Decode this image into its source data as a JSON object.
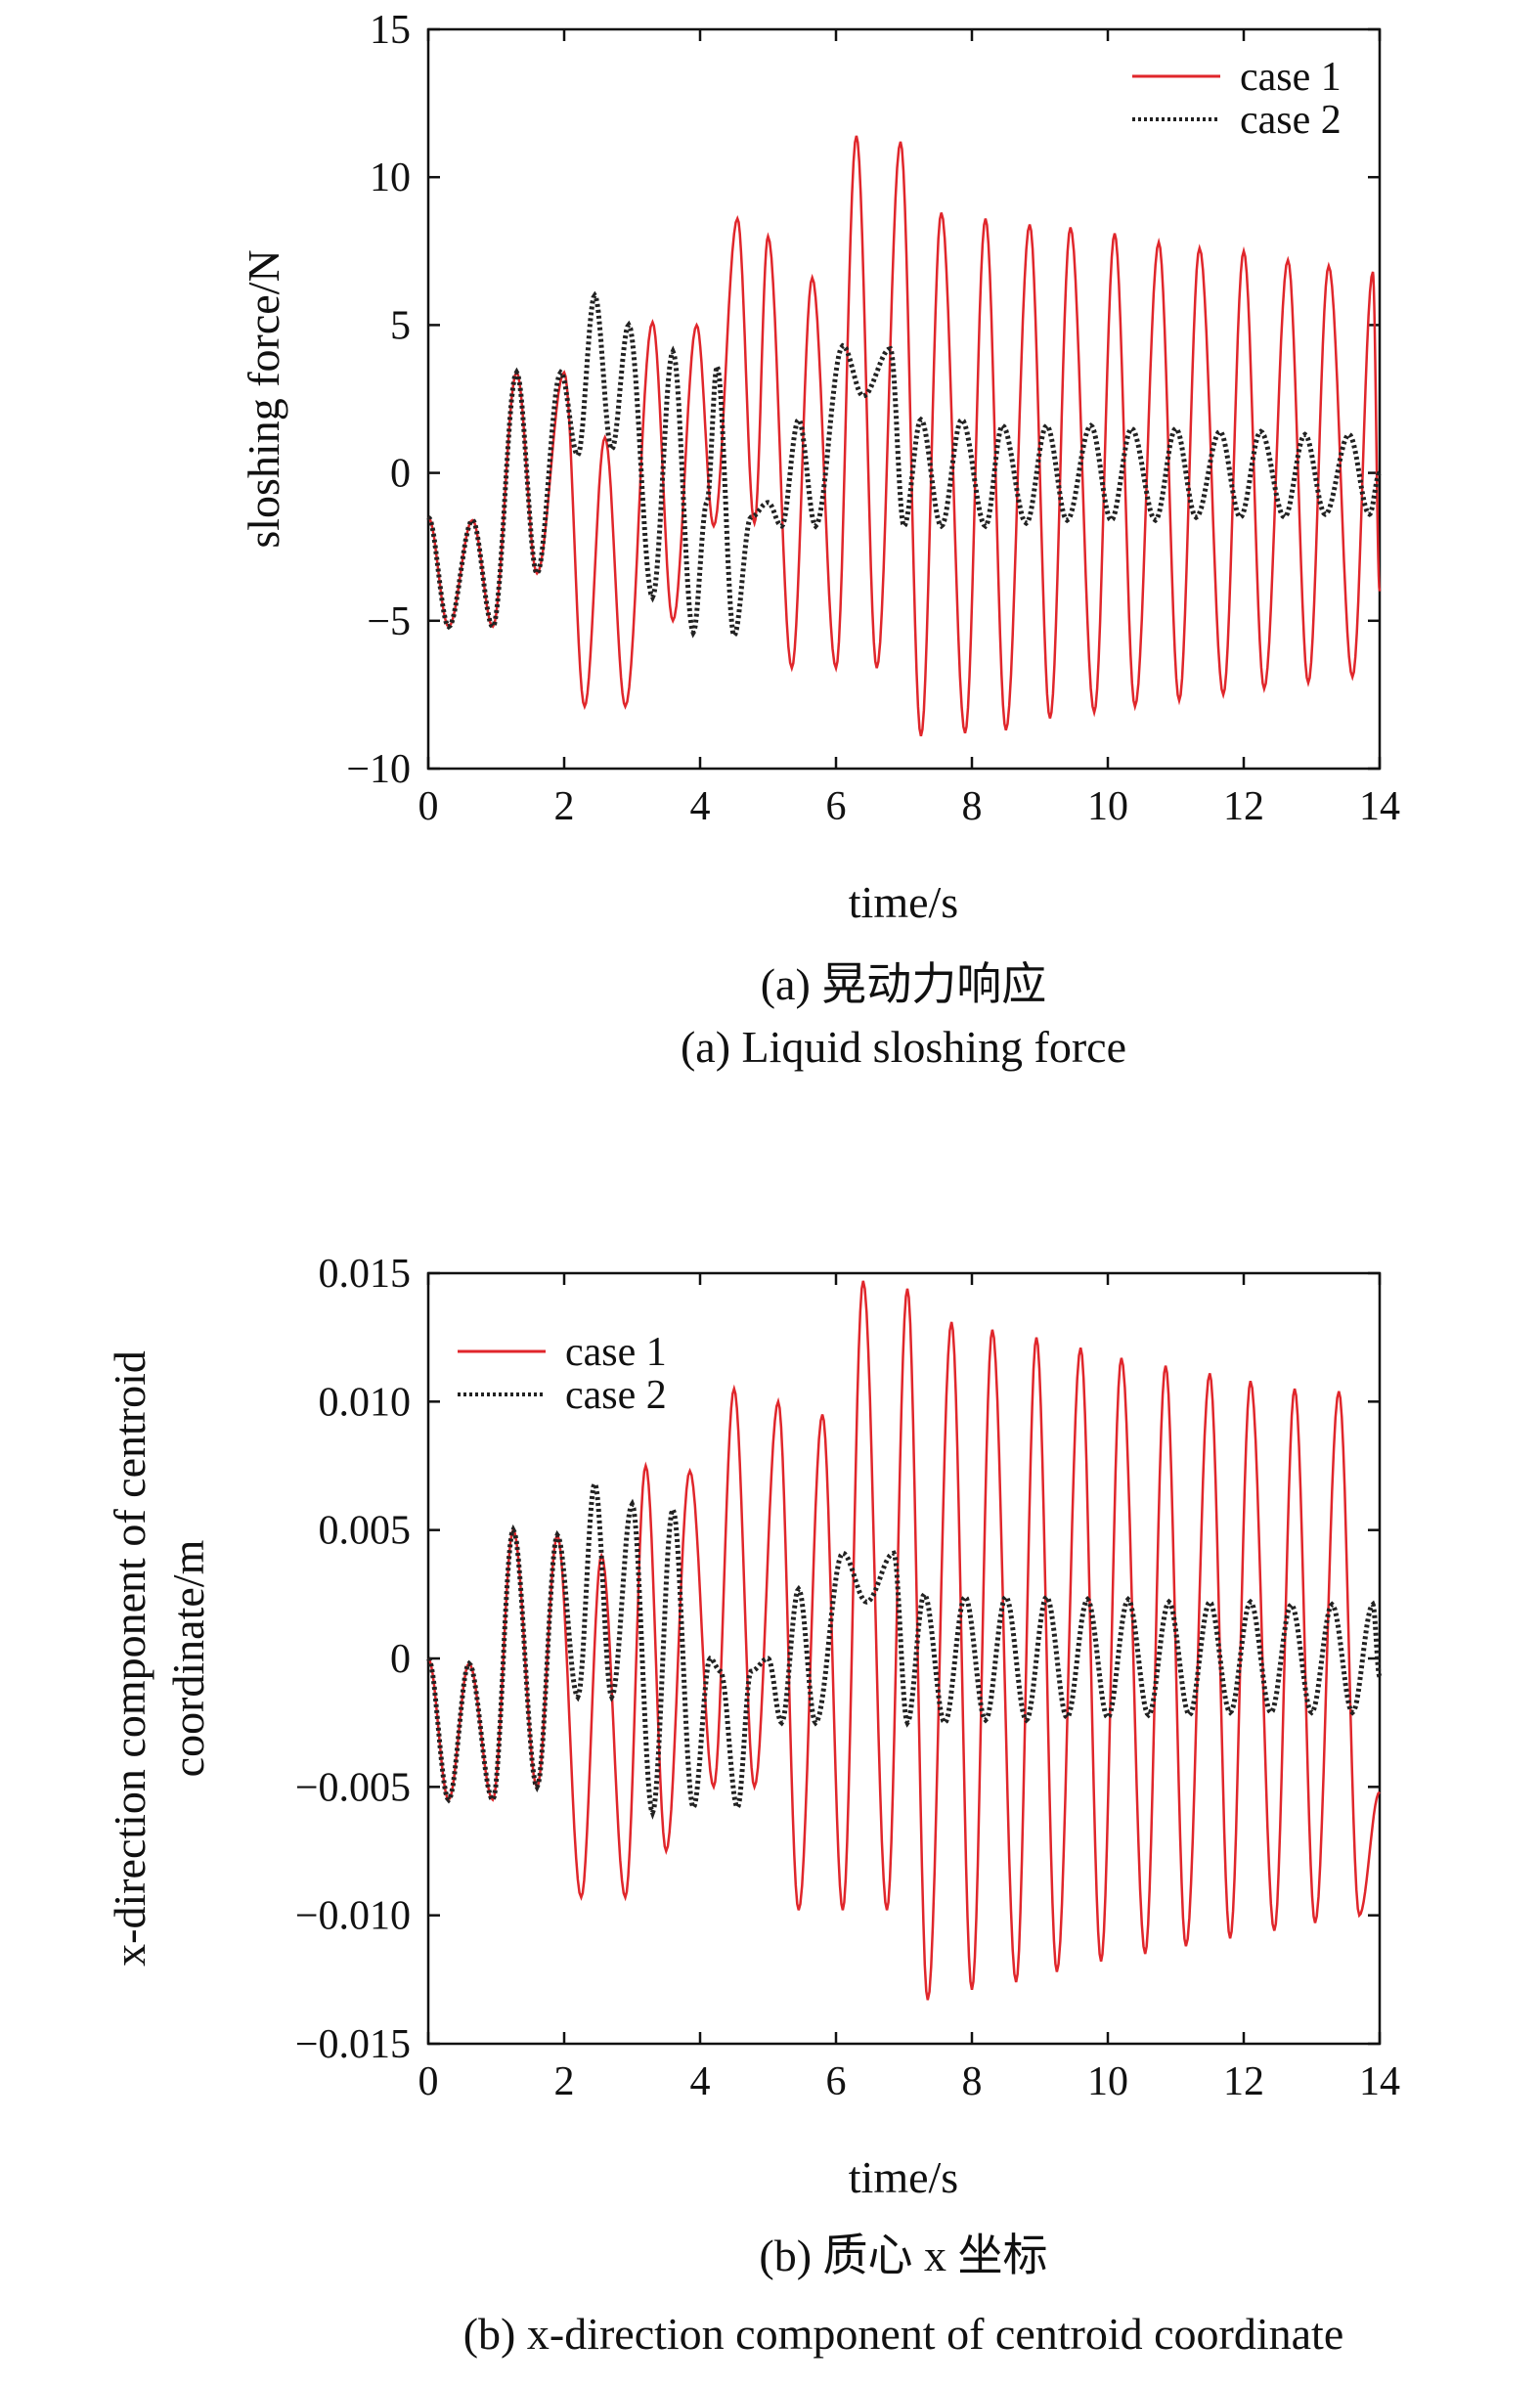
{
  "chart_data": [
    {
      "type": "line",
      "xlabel": "time/s",
      "ylabel": "sloshing force/N",
      "xlim": [
        0,
        14
      ],
      "ylim": [
        -10,
        15
      ],
      "xticks": [
        "0",
        "2",
        "4",
        "6",
        "8",
        "10",
        "12",
        "14"
      ],
      "yticks": [
        "−10",
        "−5",
        "0",
        "5",
        "10",
        "15"
      ],
      "legend_position": "top-right",
      "caption_cn": "(a) 晃动力响应",
      "caption_en": "(a) Liquid sloshing force",
      "colors": {
        "case1": "#e0262b",
        "case2": "#222222"
      },
      "series": [
        {
          "name": "case 1",
          "style": "solid",
          "x": [
            0.0,
            0.3,
            0.65,
            0.95,
            1.3,
            1.6,
            2.0,
            2.3,
            2.6,
            2.9,
            3.3,
            3.6,
            3.95,
            4.2,
            4.55,
            4.8,
            5.0,
            5.35,
            5.65,
            6.0,
            6.3,
            6.6,
            6.95,
            7.25,
            7.55,
            7.9,
            8.2,
            8.5,
            8.85,
            9.15,
            9.45,
            9.8,
            10.1,
            10.4,
            10.75,
            11.05,
            11.35,
            11.7,
            12.0,
            12.3,
            12.65,
            12.95,
            13.25,
            13.6,
            13.9,
            14.0
          ],
          "y": [
            -1.5,
            -5.2,
            -1.6,
            -5.2,
            3.4,
            -3.4,
            3.4,
            -7.9,
            1.2,
            -7.9,
            5.1,
            -5.0,
            5.0,
            -1.8,
            8.6,
            -1.7,
            8.0,
            -6.6,
            6.6,
            -6.6,
            11.4,
            -6.6,
            11.2,
            -8.9,
            8.8,
            -8.8,
            8.6,
            -8.7,
            8.4,
            -8.3,
            8.3,
            -8.1,
            8.1,
            -7.9,
            7.8,
            -7.7,
            7.6,
            -7.5,
            7.5,
            -7.3,
            7.2,
            -7.1,
            7.0,
            -6.9,
            6.8,
            -4.0
          ]
        },
        {
          "name": "case 2",
          "style": "dotted",
          "x": [
            0.0,
            0.3,
            0.65,
            0.95,
            1.3,
            1.6,
            1.95,
            2.2,
            2.45,
            2.7,
            2.95,
            3.3,
            3.6,
            3.9,
            4.1,
            4.25,
            4.5,
            4.75,
            5.0,
            5.2,
            5.45,
            5.7,
            6.1,
            6.4,
            6.8,
            7.0,
            7.25,
            7.55,
            7.85,
            8.2,
            8.45,
            8.8,
            9.1,
            9.4,
            9.75,
            10.05,
            10.35,
            10.7,
            11.0,
            11.3,
            11.65,
            11.95,
            12.25,
            12.6,
            12.9,
            13.2,
            13.55,
            13.85,
            14.0
          ],
          "y": [
            -1.5,
            -5.2,
            -1.6,
            -5.2,
            3.4,
            -3.4,
            3.4,
            0.6,
            6.0,
            0.8,
            5.0,
            -4.2,
            4.1,
            -5.4,
            -1.0,
            3.6,
            -5.5,
            -1.5,
            -1.0,
            -1.8,
            1.8,
            -1.8,
            4.3,
            2.6,
            4.2,
            -1.8,
            1.8,
            -1.8,
            1.8,
            -1.8,
            1.6,
            -1.7,
            1.6,
            -1.6,
            1.6,
            -1.6,
            1.5,
            -1.6,
            1.5,
            -1.5,
            1.4,
            -1.5,
            1.4,
            -1.5,
            1.3,
            -1.4,
            1.3,
            -1.4,
            0.0
          ]
        }
      ]
    },
    {
      "type": "line",
      "xlabel": "time/s",
      "ylabel": "x-direction component of centroid coordinate/m",
      "ylabel_lines": [
        "x-direction component of centroid",
        "coordinate/m"
      ],
      "xlim": [
        0,
        14
      ],
      "ylim": [
        -0.015,
        0.015
      ],
      "xticks": [
        "0",
        "2",
        "4",
        "6",
        "8",
        "10",
        "12",
        "14"
      ],
      "yticks": [
        "−0.015",
        "−0.010",
        "−0.005",
        "0",
        "0.005",
        "0.010",
        "0.015"
      ],
      "legend_position": "top-left",
      "caption_cn": "(b) 质心 x 坐标",
      "caption_en": "(b) x-direction component of centroid coordinate",
      "colors": {
        "case1": "#e0262b",
        "case2": "#222222"
      },
      "series": [
        {
          "name": "case 1",
          "style": "solid",
          "x": [
            0.0,
            0.3,
            0.6,
            0.95,
            1.25,
            1.6,
            1.9,
            2.25,
            2.55,
            2.9,
            3.2,
            3.5,
            3.85,
            4.2,
            4.5,
            4.8,
            5.15,
            5.45,
            5.8,
            6.1,
            6.4,
            6.75,
            7.05,
            7.35,
            7.7,
            8.0,
            8.3,
            8.65,
            8.95,
            9.25,
            9.6,
            9.9,
            10.2,
            10.55,
            10.85,
            11.15,
            11.5,
            11.8,
            12.1,
            12.45,
            12.75,
            13.05,
            13.4,
            13.7,
            14.0
          ],
          "y": [
            0.0,
            -0.0055,
            -0.0002,
            -0.0055,
            0.005,
            -0.005,
            0.0048,
            -0.0093,
            0.004,
            -0.0093,
            0.0075,
            -0.0075,
            0.0073,
            -0.005,
            0.0105,
            -0.005,
            0.01,
            -0.0098,
            0.0095,
            -0.0098,
            0.0147,
            -0.0098,
            0.0144,
            -0.0133,
            0.0131,
            -0.0129,
            0.0128,
            -0.0126,
            0.0125,
            -0.0122,
            0.0121,
            -0.0118,
            0.0117,
            -0.0115,
            0.0114,
            -0.0112,
            0.0111,
            -0.0109,
            0.0108,
            -0.0106,
            0.0105,
            -0.0103,
            0.0104,
            -0.01,
            -0.0052
          ]
        },
        {
          "name": "case 2",
          "style": "dotted",
          "x": [
            0.0,
            0.3,
            0.6,
            0.95,
            1.25,
            1.6,
            1.9,
            2.2,
            2.45,
            2.7,
            3.0,
            3.3,
            3.6,
            3.9,
            4.15,
            4.3,
            4.55,
            4.75,
            5.0,
            5.2,
            5.45,
            5.7,
            6.1,
            6.45,
            6.85,
            7.05,
            7.3,
            7.6,
            7.9,
            8.2,
            8.5,
            8.8,
            9.1,
            9.4,
            9.7,
            10.0,
            10.3,
            10.6,
            10.9,
            11.2,
            11.5,
            11.8,
            12.1,
            12.4,
            12.7,
            13.0,
            13.3,
            13.6,
            13.9,
            14.0
          ],
          "y": [
            0.0,
            -0.0055,
            -0.0002,
            -0.0055,
            0.005,
            -0.005,
            0.0048,
            -0.0015,
            0.0068,
            -0.0015,
            0.006,
            -0.006,
            0.0058,
            -0.0058,
            0.0,
            -0.0005,
            -0.0058,
            -0.0005,
            0.0,
            -0.0025,
            0.0027,
            -0.0025,
            0.0041,
            0.0022,
            0.0041,
            -0.0025,
            0.0025,
            -0.0025,
            0.0024,
            -0.0024,
            0.0024,
            -0.0024,
            0.0024,
            -0.0023,
            0.0023,
            -0.0023,
            0.0023,
            -0.0022,
            0.0022,
            -0.0022,
            0.0022,
            -0.0021,
            0.0022,
            -0.0021,
            0.0021,
            -0.0021,
            0.0021,
            -0.0021,
            0.0021,
            -0.0007
          ]
        }
      ]
    }
  ]
}
